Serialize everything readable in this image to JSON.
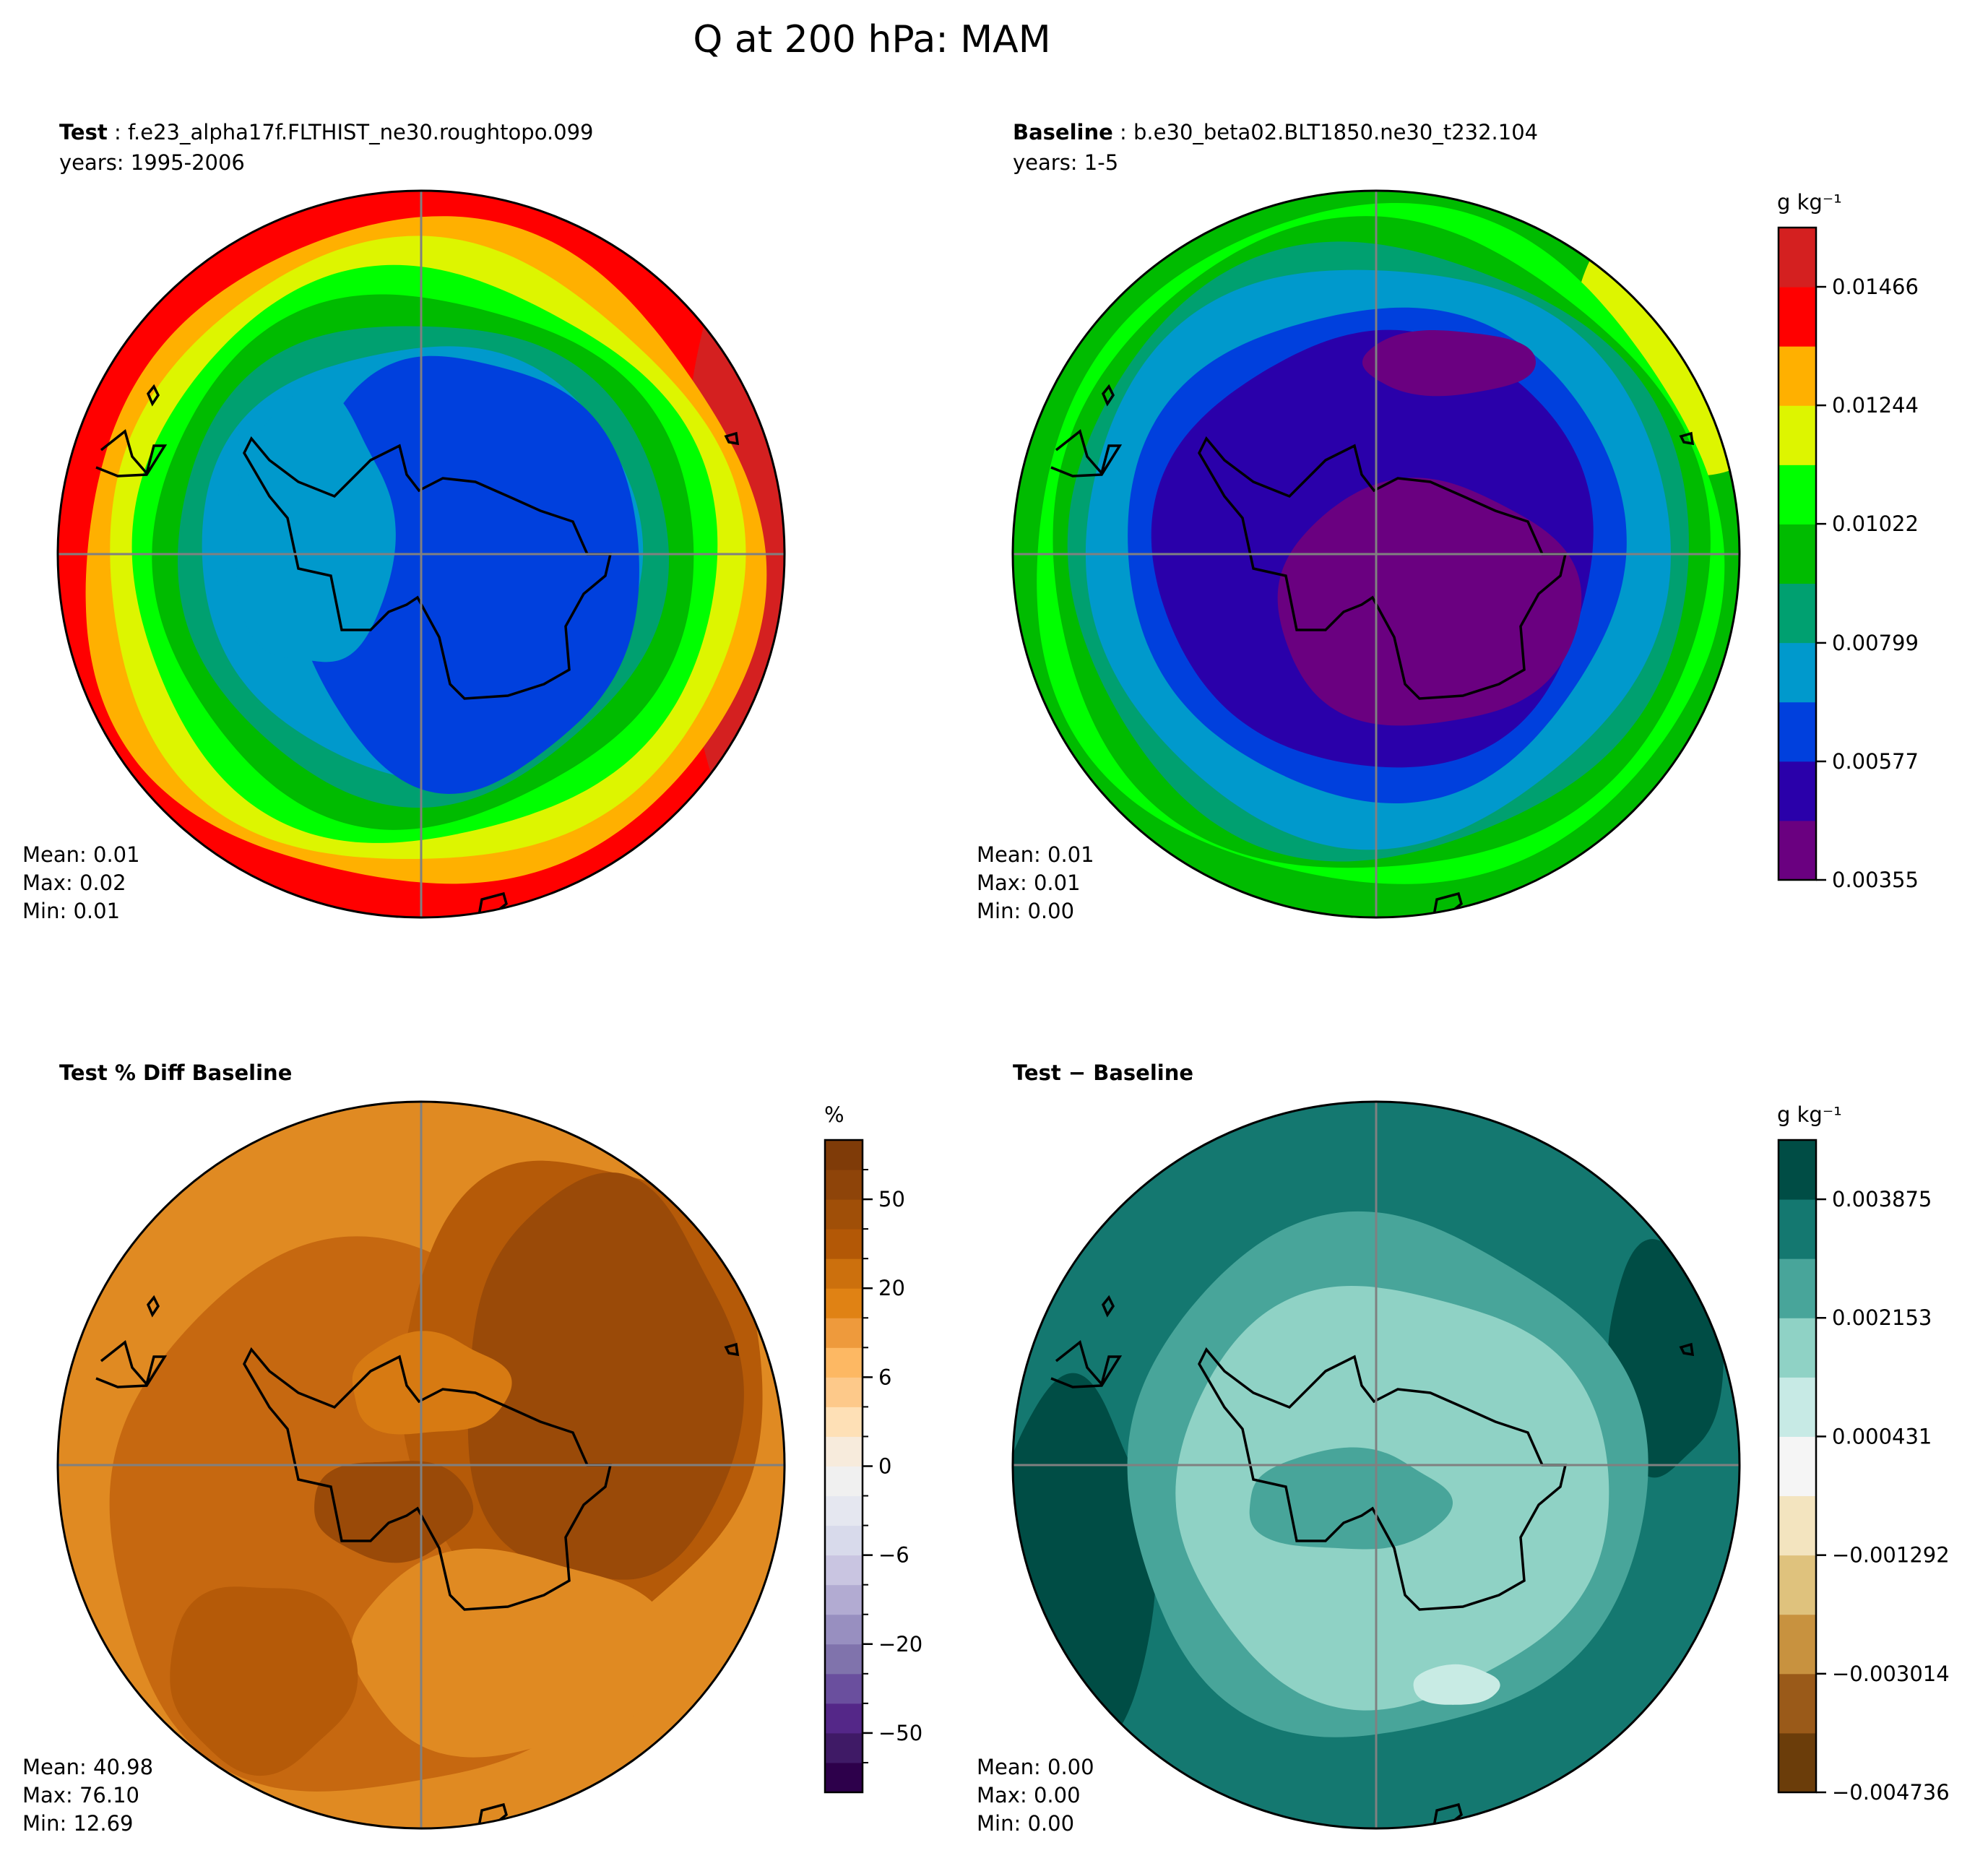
{
  "figure": {
    "title": "Q at 200 hPa: MAM"
  },
  "panels": [
    {
      "id": "test",
      "title_bold": "Test",
      "title_rest": " : f.e23_alpha17f.FLTHIST_ne30.roughtopo.099",
      "subtitle": "years: 1995-2006",
      "stats": {
        "mean": "Mean:  0.01",
        "max": "Max:  0.02",
        "min": "Min:  0.01"
      },
      "palette": [
        "#0040dd",
        "#0099cc",
        "#00a070",
        "#00bb00",
        "#00ff00",
        "#ddf500",
        "#ffb000",
        "#ff0000",
        "#d42020"
      ]
    },
    {
      "id": "baseline",
      "title_bold": "Baseline",
      "title_rest": " : b.e30_beta02.BLT1850.ne30_t232.104",
      "subtitle": "years: 1-5",
      "stats": {
        "mean": "Mean:  0.01",
        "max": "Max:  0.01",
        "min": "Min:  0.00"
      },
      "palette": [
        "#6a0080",
        "#2a00aa",
        "#0040dd",
        "#0099cc",
        "#00a070",
        "#00bb00",
        "#00ff00",
        "#ddf500"
      ]
    },
    {
      "id": "pctdiff",
      "title_bold": "Test % Diff Baseline",
      "title_rest": "",
      "subtitle": "",
      "stats": {
        "mean": "Mean: 40.98",
        "max": "Max: 76.10",
        "min": "Min: 12.69"
      },
      "palette": [
        "#e08a22",
        "#d77a12",
        "#c66810",
        "#b55a08",
        "#9a4a08",
        "#d77a12"
      ]
    },
    {
      "id": "diff",
      "title_bold": "Test",
      "title_rest": " − Baseline",
      "subtitle": "",
      "stats": {
        "mean": "Mean:  0.00",
        "max": "Max:  0.00",
        "min": "Min:  0.00"
      },
      "palette": [
        "#147870",
        "#48a59a",
        "#8fd2c5",
        "#c8ebe4",
        "#004d45"
      ]
    }
  ],
  "colorbars": [
    {
      "id": "abs",
      "unit": "g kg⁻¹",
      "colors": [
        "#6a0080",
        "#2a00aa",
        "#0040dd",
        "#0099cc",
        "#00a070",
        "#00bb00",
        "#00ff00",
        "#ddf500",
        "#ffb000",
        "#ff0000",
        "#d42020"
      ],
      "ticks": [
        {
          "label": "0.01466",
          "value": 0.01466
        },
        {
          "label": "0.01244",
          "value": 0.01244
        },
        {
          "label": "0.01022",
          "value": 0.01022
        },
        {
          "label": "0.00799",
          "value": 0.00799
        },
        {
          "label": "0.00577",
          "value": 0.00577
        },
        {
          "label": "0.00355",
          "value": 0.00355
        }
      ],
      "range": [
        0.00355,
        0.01577
      ]
    },
    {
      "id": "pct",
      "unit": "%",
      "colors": [
        "#2d004b",
        "#3f1a66",
        "#542788",
        "#6a4f9e",
        "#8073ac",
        "#988fc0",
        "#b2abd2",
        "#c9c5e1",
        "#d8daeb",
        "#e5e7f0",
        "#f0f0f0",
        "#f7ebdc",
        "#fee0b6",
        "#fdc98a",
        "#fdb863",
        "#ee9a3c",
        "#e08214",
        "#cc700d",
        "#b35806",
        "#a04f08",
        "#8e4409",
        "#7f3b08"
      ],
      "ticks": [
        {
          "label": "50",
          "index": 20
        },
        {
          "label": "20",
          "index": 17
        },
        {
          "label": "6",
          "index": 14
        },
        {
          "label": "0",
          "index": 11
        },
        {
          "label": "−6",
          "index": 8
        },
        {
          "label": "−20",
          "index": 5
        },
        {
          "label": "−50",
          "index": 2
        }
      ]
    },
    {
      "id": "absdiff",
      "unit": "g kg⁻¹",
      "colors": [
        "#6b3d0a",
        "#9a5a19",
        "#c8923f",
        "#dfc27d",
        "#f3e4bf",
        "#f5f5f5",
        "#c7eae5",
        "#8fd2c5",
        "#48a59a",
        "#147870",
        "#004d45"
      ],
      "ticks": [
        {
          "label": "0.003875",
          "value": 0.003875
        },
        {
          "label": "0.002153",
          "value": 0.002153
        },
        {
          "label": "0.000431",
          "value": 0.000431
        },
        {
          "label": "−0.001292",
          "value": -0.001292
        },
        {
          "label": "−0.003014",
          "value": -0.003014
        },
        {
          "label": "−0.004736",
          "value": -0.004736
        }
      ],
      "range": [
        -0.004736,
        0.004736
      ]
    }
  ],
  "chart_data": [
    {
      "type": "heatmap",
      "title": "Test: f.e23_alpha17f.FLTHIST_ne30.roughtopo.099 (years: 1995-2006)",
      "projection": "south polar stereographic",
      "variable": "Q",
      "level": "200 hPa",
      "season": "MAM",
      "units": "g kg-1",
      "mean": 0.01,
      "max": 0.02,
      "min": 0.01
    },
    {
      "type": "heatmap",
      "title": "Baseline: b.e30_beta02.BLT1850.ne30_t232.104 (years: 1-5)",
      "projection": "south polar stereographic",
      "units": "g kg-1",
      "mean": 0.01,
      "max": 0.01,
      "min": 0.0,
      "colorbar_ticks": [
        0.00355,
        0.00577,
        0.00799,
        0.01022,
        0.01244,
        0.01466
      ]
    },
    {
      "type": "heatmap",
      "title": "Test % Diff Baseline",
      "units": "%",
      "mean": 40.98,
      "max": 76.1,
      "min": 12.69,
      "colorbar_ticks": [
        -50,
        -20,
        -6,
        0,
        6,
        20,
        50
      ]
    },
    {
      "type": "heatmap",
      "title": "Test − Baseline",
      "units": "g kg-1",
      "mean": 0.0,
      "max": 0.0,
      "min": 0.0,
      "colorbar_ticks": [
        -0.004736,
        -0.003014,
        -0.001292,
        0.000431,
        0.002153,
        0.003875
      ]
    }
  ]
}
